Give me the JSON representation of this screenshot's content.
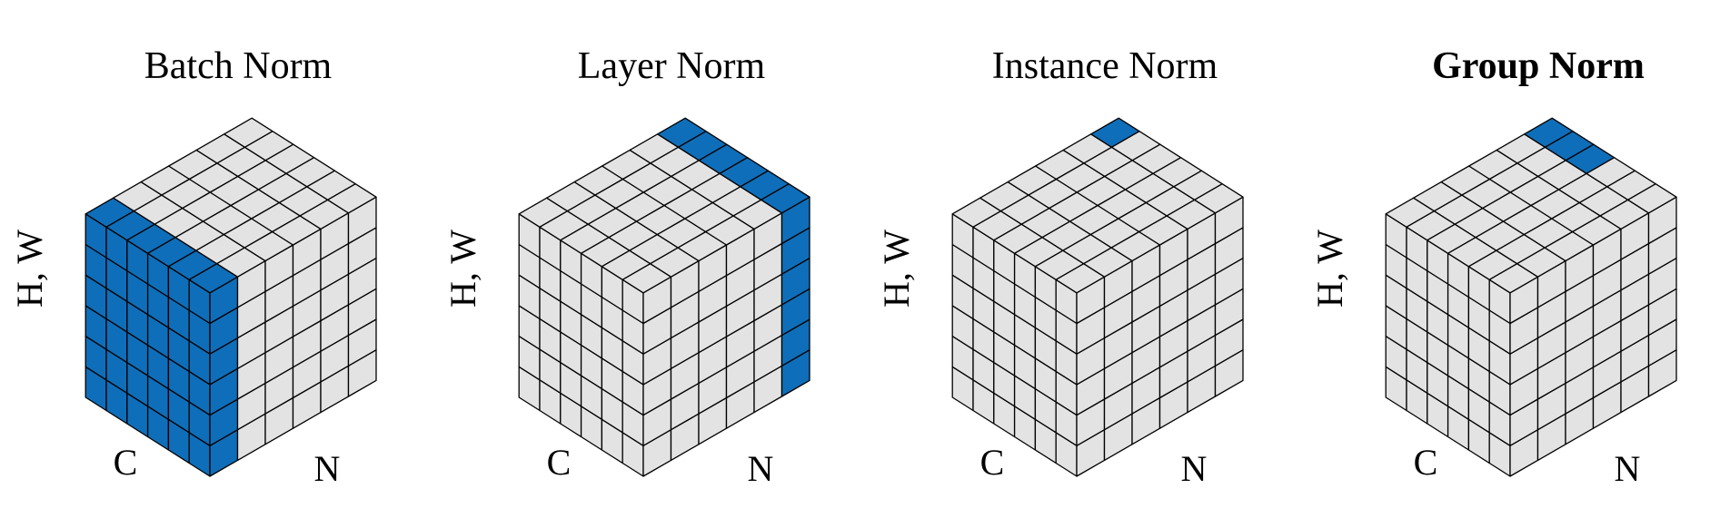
{
  "figure": {
    "colors": {
      "highlight": "#0f6eb9",
      "background_cell": "#e3e3e3",
      "edge": "#000000"
    },
    "grid": {
      "channels": 6,
      "batch": 6,
      "spatial": 6
    },
    "panels": [
      {
        "id": "batch",
        "title": "Batch Norm",
        "bold": false,
        "axis_labels": {
          "spatial": "H, W",
          "channel": "C",
          "batch": "N"
        },
        "highlight": {
          "channels": [
            0,
            1,
            2,
            3,
            4,
            5
          ],
          "batch": [
            0
          ]
        }
      },
      {
        "id": "layer",
        "title": "Layer Norm",
        "bold": false,
        "axis_labels": {
          "spatial": "H, W",
          "channel": "C",
          "batch": "N"
        },
        "highlight": {
          "channels": [
            0,
            1,
            2,
            3,
            4,
            5
          ],
          "batch": [
            5
          ]
        }
      },
      {
        "id": "instance",
        "title": "Instance Norm",
        "bold": false,
        "axis_labels": {
          "spatial": "H, W",
          "channel": "C",
          "batch": "N"
        },
        "highlight": {
          "channels": [
            0
          ],
          "batch": [
            5
          ]
        }
      },
      {
        "id": "group",
        "title": "Group Norm",
        "bold": true,
        "axis_labels": {
          "spatial": "H, W",
          "channel": "C",
          "batch": "N"
        },
        "highlight": {
          "channels": [
            0,
            1,
            2
          ],
          "batch": [
            5
          ]
        }
      }
    ]
  }
}
